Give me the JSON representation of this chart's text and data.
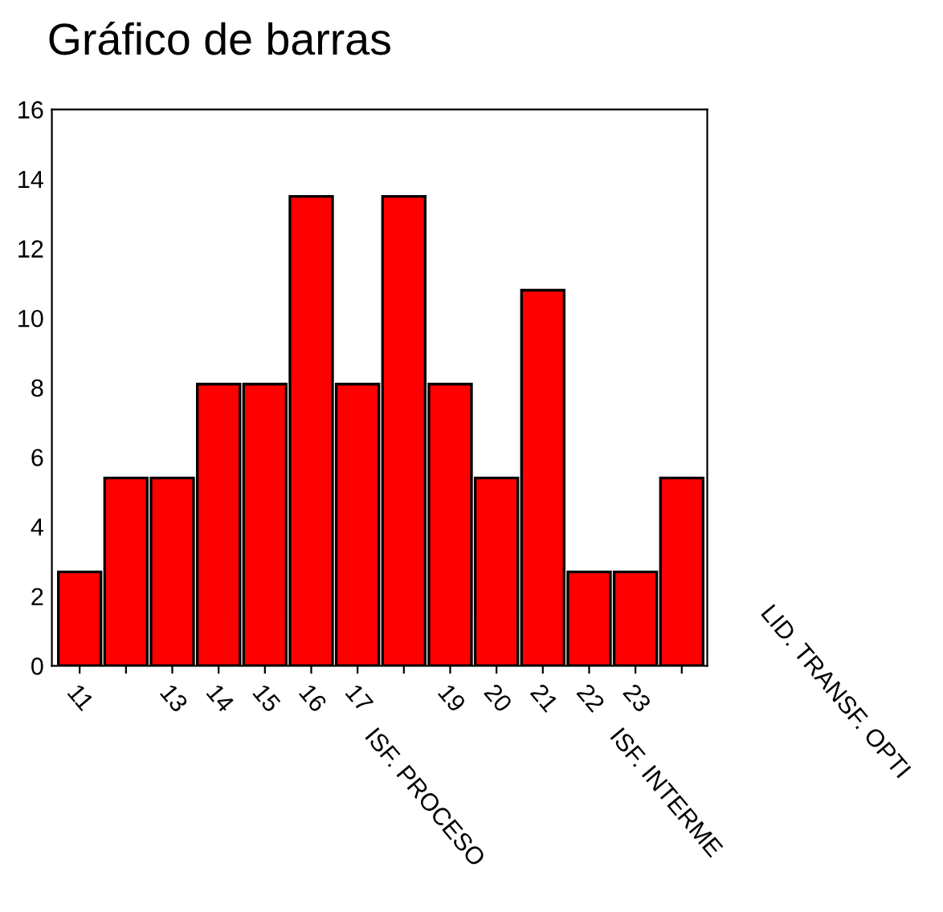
{
  "chart_data": {
    "type": "bar",
    "title": "Gráfico de barras",
    "categories": [
      "11",
      null,
      "13",
      "14",
      "15",
      "16",
      "17",
      null,
      "19",
      "20",
      "21",
      "22",
      "23",
      null
    ],
    "values": [
      2.7,
      5.4,
      5.4,
      8.1,
      8.1,
      13.5,
      8.1,
      13.5,
      8.1,
      5.4,
      10.8,
      2.7,
      2.7,
      5.4
    ],
    "color": "#ff0000",
    "ylim": [
      0,
      16
    ],
    "yticks": [
      0,
      2,
      4,
      6,
      8,
      10,
      12,
      14,
      16
    ],
    "grid": false,
    "annotations": [
      "ISF. PROCESO",
      "ISF. INTERME",
      "LID. TRANSF. OPTI"
    ]
  }
}
